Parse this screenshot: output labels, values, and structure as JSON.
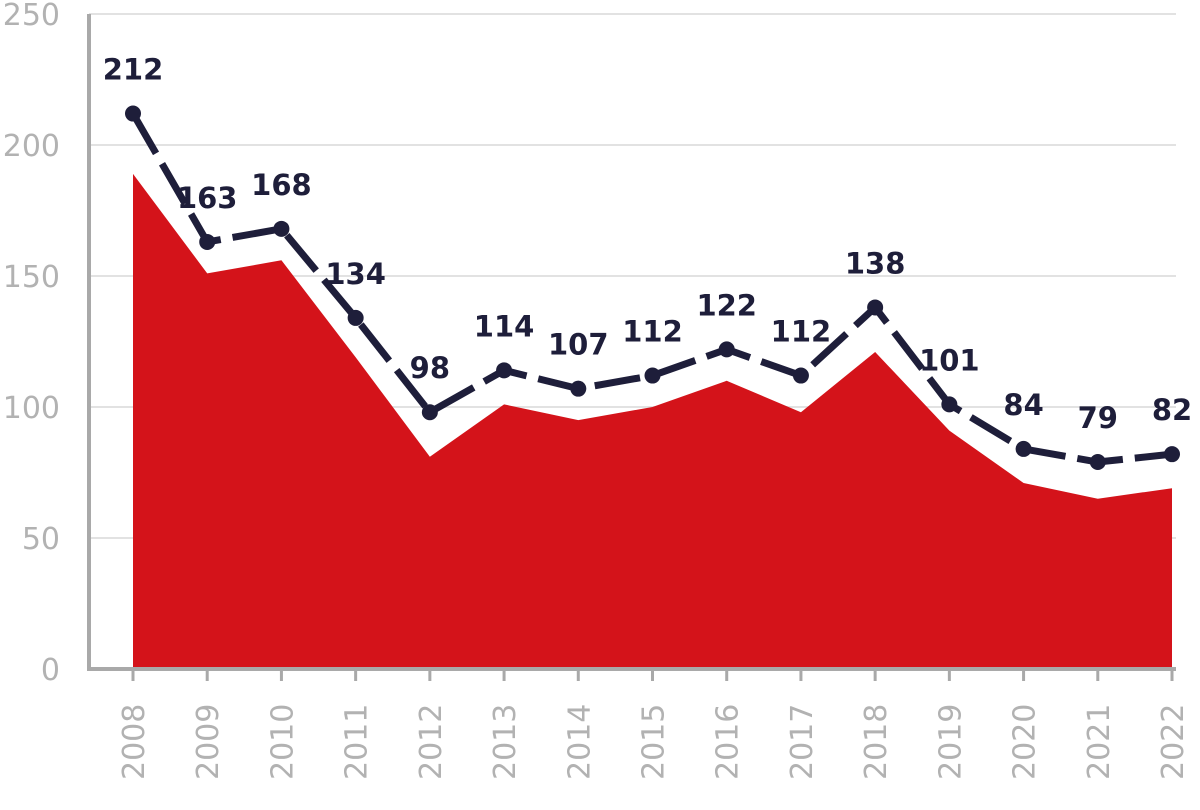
{
  "chart_data": {
    "type": "area",
    "categories": [
      "2008",
      "2009",
      "2010",
      "2011",
      "2012",
      "2013",
      "2014",
      "2015",
      "2016",
      "2017",
      "2018",
      "2019",
      "2020",
      "2021",
      "2022"
    ],
    "series": [
      {
        "kind": "line",
        "values": [
          212,
          163,
          168,
          134,
          98,
          114,
          107,
          112,
          122,
          112,
          138,
          101,
          84,
          79,
          82
        ],
        "color": "#1e1e3a",
        "style": "dashed-with-markers"
      },
      {
        "kind": "area",
        "values": [
          189,
          151,
          156,
          119,
          81,
          101,
          95,
          100,
          110,
          98,
          121,
          91,
          71,
          65,
          69
        ],
        "color": "#d4131a"
      }
    ],
    "ylim": [
      0,
      250
    ],
    "yticks": [
      0,
      50,
      100,
      150,
      200,
      250
    ],
    "grid": true,
    "legend": "none",
    "title": "",
    "xlabel": "",
    "ylabel": ""
  }
}
